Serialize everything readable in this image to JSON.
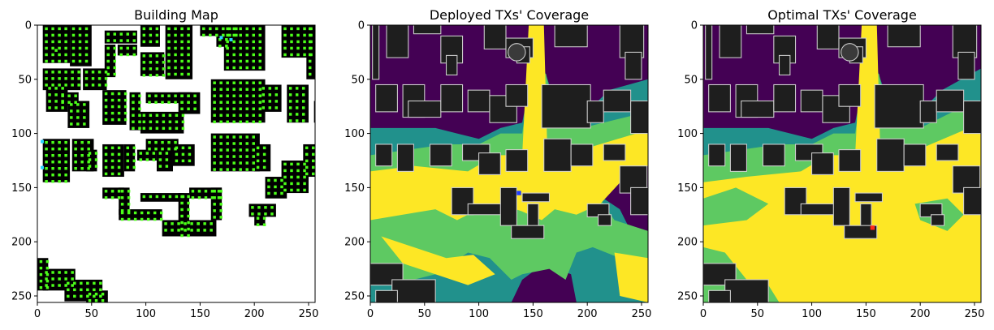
{
  "chart_data": [
    {
      "type": "heatmap",
      "title": "Building Map",
      "xlim": [
        0,
        256
      ],
      "ylim": [
        256,
        0
      ],
      "xticks": [
        "0",
        "50",
        "100",
        "150",
        "200",
        "250"
      ],
      "yticks": [
        "0",
        "50",
        "100",
        "150",
        "200",
        "250"
      ],
      "colors": {
        "background": "#ffffff",
        "building": "#000000",
        "marker": "#4cff1a",
        "highlight": "#29d2ff"
      }
    },
    {
      "type": "heatmap",
      "title": "Deployed TXs' Coverage",
      "xlim": [
        0,
        256
      ],
      "ylim": [
        256,
        0
      ],
      "xticks": [
        "0",
        "50",
        "100",
        "150",
        "200",
        "250"
      ],
      "yticks": [
        "0",
        "50",
        "100",
        "150",
        "200",
        "250"
      ],
      "tx_marker": {
        "x": 137,
        "y": 155,
        "color": "#1f3dff"
      },
      "colors": {
        "low": "#440154",
        "mid_low": "#21918c",
        "mid_high": "#5ec962",
        "high": "#fde725",
        "building": "#1e1e1e"
      }
    },
    {
      "type": "heatmap",
      "title": "Optimal TXs' Coverage",
      "xlim": [
        0,
        256
      ],
      "ylim": [
        256,
        0
      ],
      "xticks": [
        "0",
        "50",
        "100",
        "150",
        "200",
        "250"
      ],
      "yticks": [
        "0",
        "50",
        "100",
        "150",
        "200",
        "250"
      ],
      "tx_marker": {
        "x": 156,
        "y": 187,
        "color": "#ff2a1a"
      },
      "colors": {
        "low": "#440154",
        "mid_low": "#21918c",
        "mid_high": "#5ec962",
        "high": "#fde725",
        "building": "#1e1e1e"
      }
    }
  ]
}
